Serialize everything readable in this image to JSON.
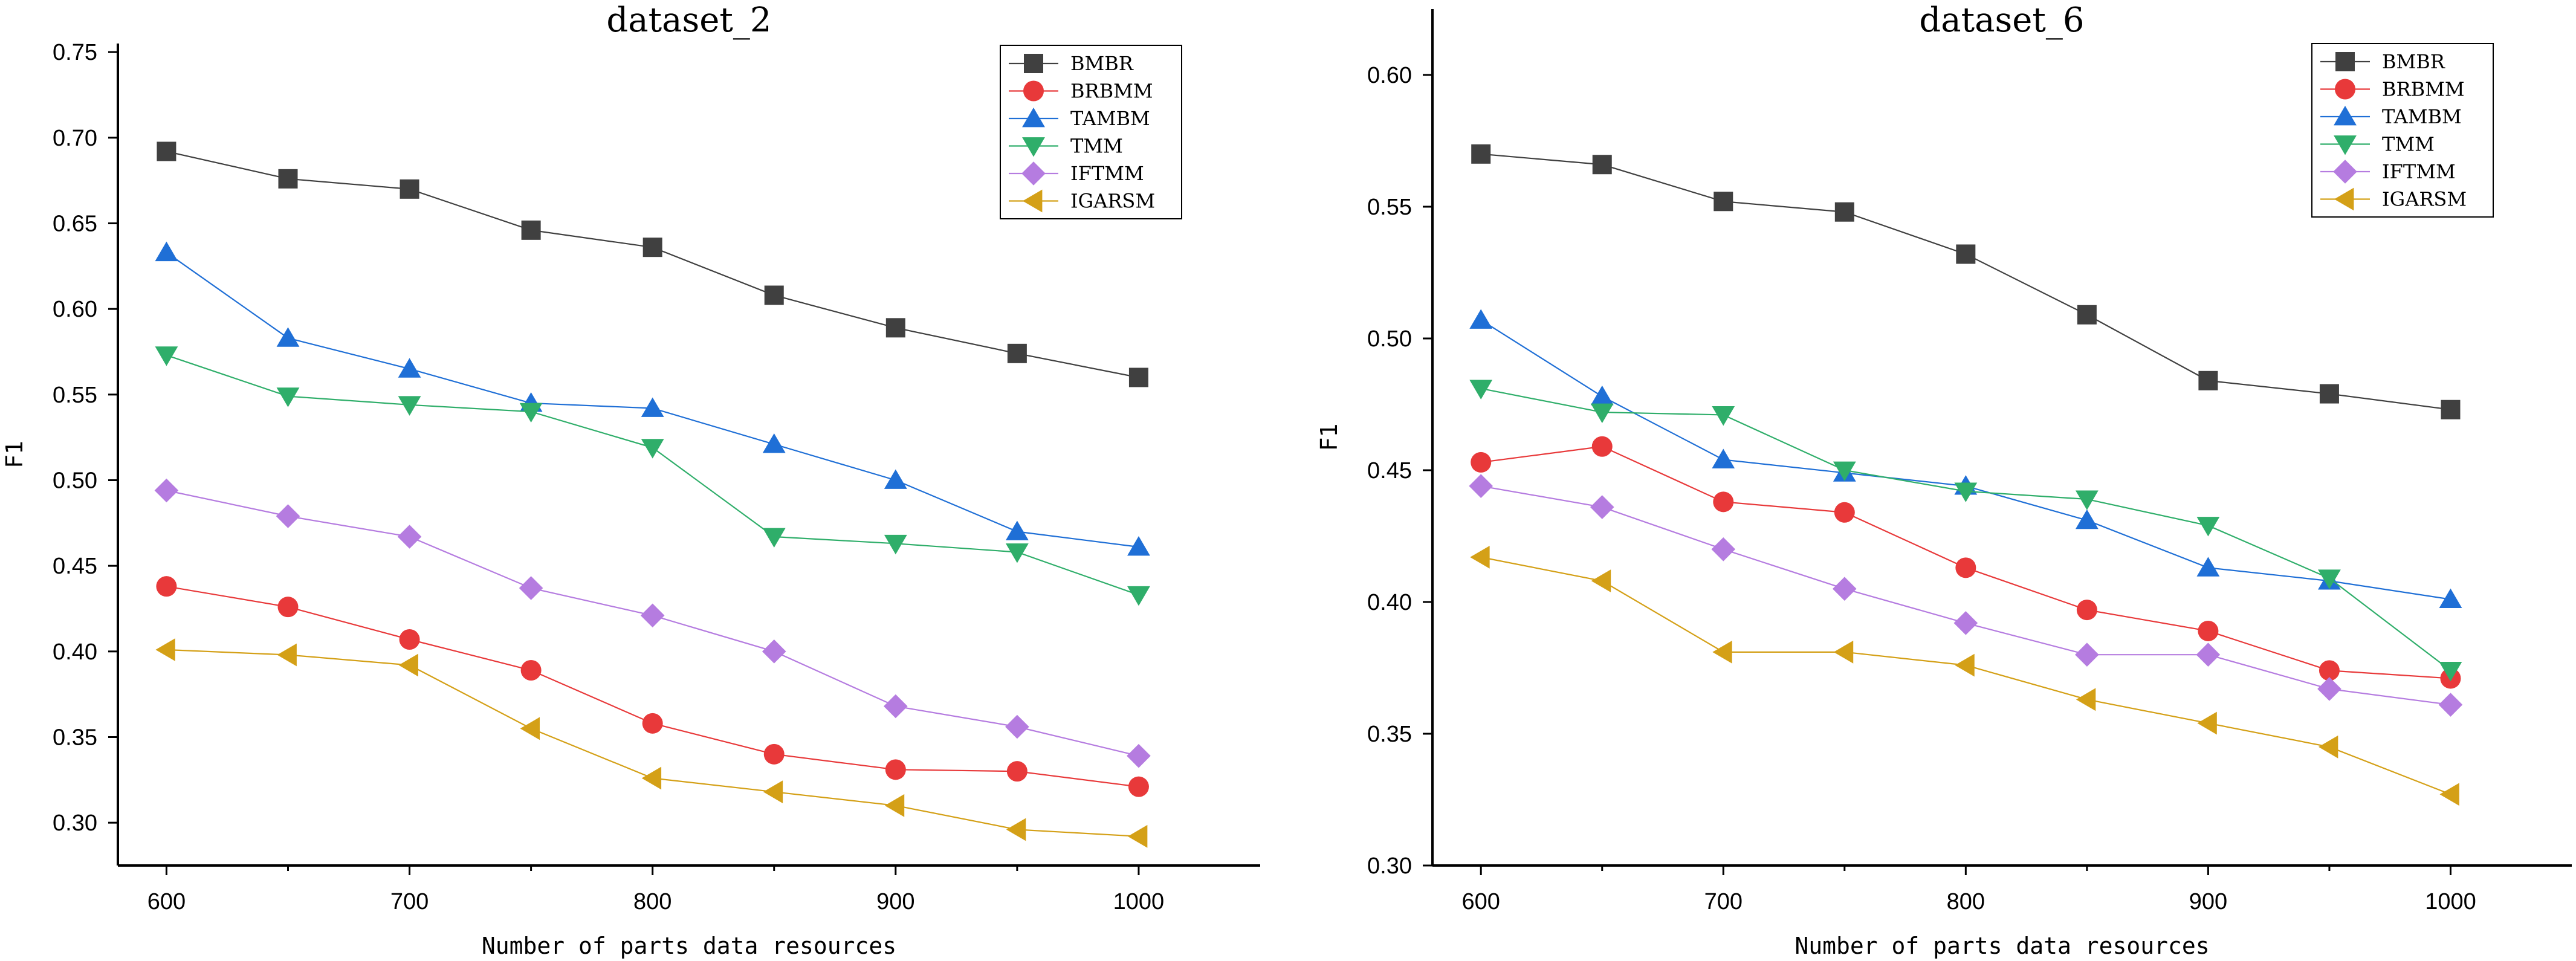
{
  "chart_data": [
    {
      "type": "line",
      "title": "dataset_2",
      "xlabel": "Number of parts data resources",
      "ylabel": "F1",
      "x": [
        600,
        650,
        700,
        750,
        800,
        850,
        900,
        950,
        1000
      ],
      "x_ticks": [
        "600",
        "700",
        "800",
        "900",
        "1000"
      ],
      "y_ticks": [
        "0.30",
        "0.35",
        "0.40",
        "0.45",
        "0.50",
        "0.55",
        "0.60",
        "0.65",
        "0.70",
        "0.75"
      ],
      "xlim": [
        580,
        1050
      ],
      "ylim": [
        0.275,
        0.755
      ],
      "legend_position": "top-right",
      "series": [
        {
          "name": "BMBR",
          "color": "#404040",
          "marker": "square",
          "values": [
            0.692,
            0.676,
            0.67,
            0.646,
            0.636,
            0.608,
            0.589,
            0.574,
            0.56
          ]
        },
        {
          "name": "BRBMM",
          "color": "#e8393a",
          "marker": "circle",
          "values": [
            0.438,
            0.426,
            0.407,
            0.389,
            0.358,
            0.34,
            0.331,
            0.33,
            0.321
          ]
        },
        {
          "name": "TAMBM",
          "color": "#1f6fd6",
          "marker": "triangle-up",
          "values": [
            0.633,
            0.583,
            0.565,
            0.545,
            0.542,
            0.521,
            0.5,
            0.47,
            0.461
          ]
        },
        {
          "name": "TMM",
          "color": "#2fae6a",
          "marker": "triangle-down",
          "values": [
            0.573,
            0.549,
            0.544,
            0.54,
            0.519,
            0.467,
            0.463,
            0.458,
            0.433
          ]
        },
        {
          "name": "IFTMM",
          "color": "#b57ce0",
          "marker": "diamond",
          "values": [
            0.494,
            0.479,
            0.467,
            0.437,
            0.421,
            0.4,
            0.368,
            0.356,
            0.339
          ]
        },
        {
          "name": "IGARSM",
          "color": "#d4a017",
          "marker": "triangle-left",
          "values": [
            0.401,
            0.398,
            0.392,
            0.355,
            0.326,
            0.318,
            0.31,
            0.296,
            0.292
          ]
        }
      ]
    },
    {
      "type": "line",
      "title": "dataset_6",
      "xlabel": "Number of parts data resources",
      "ylabel": "F1",
      "x": [
        600,
        650,
        700,
        750,
        800,
        850,
        900,
        950,
        1000
      ],
      "x_ticks": [
        "600",
        "700",
        "800",
        "900",
        "1000"
      ],
      "y_ticks": [
        "0.30",
        "0.35",
        "0.40",
        "0.45",
        "0.50",
        "0.55",
        "0.60"
      ],
      "xlim": [
        580,
        1050
      ],
      "ylim": [
        0.3,
        0.625
      ],
      "legend_position": "top-right",
      "series": [
        {
          "name": "BMBR",
          "color": "#404040",
          "marker": "square",
          "values": [
            0.57,
            0.566,
            0.552,
            0.548,
            0.532,
            0.509,
            0.484,
            0.479,
            0.473
          ]
        },
        {
          "name": "BRBMM",
          "color": "#e8393a",
          "marker": "circle",
          "values": [
            0.453,
            0.459,
            0.438,
            0.434,
            0.413,
            0.397,
            0.389,
            0.374,
            0.371
          ]
        },
        {
          "name": "TAMBM",
          "color": "#1f6fd6",
          "marker": "triangle-up",
          "values": [
            0.507,
            0.478,
            0.454,
            0.449,
            0.444,
            0.431,
            0.413,
            0.408,
            0.401
          ]
        },
        {
          "name": "TMM",
          "color": "#2fae6a",
          "marker": "triangle-down",
          "values": [
            0.481,
            0.472,
            0.471,
            0.45,
            0.442,
            0.439,
            0.429,
            0.409,
            0.374
          ]
        },
        {
          "name": "IFTMM",
          "color": "#b57ce0",
          "marker": "diamond",
          "values": [
            0.444,
            0.436,
            0.42,
            0.405,
            0.392,
            0.38,
            0.38,
            0.367,
            0.361
          ]
        },
        {
          "name": "IGARSM",
          "color": "#d4a017",
          "marker": "triangle-left",
          "values": [
            0.417,
            0.408,
            0.381,
            0.381,
            0.376,
            0.363,
            0.354,
            0.345,
            0.327
          ]
        }
      ]
    }
  ]
}
